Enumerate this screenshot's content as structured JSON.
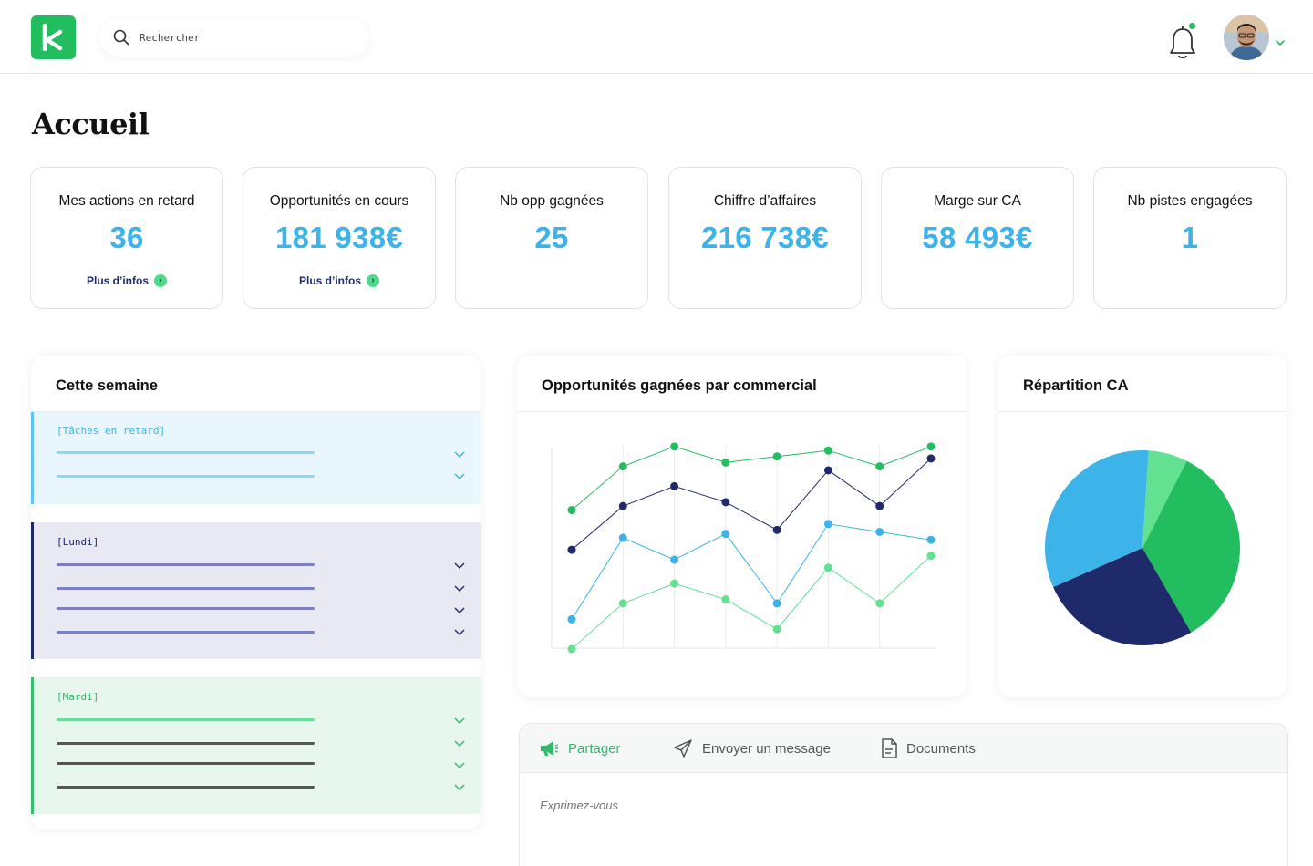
{
  "colors": {
    "brand": "#22bd5e",
    "kpi_value": "#3cb3e9",
    "navy": "#1f2a6b",
    "green": "#22bd5e",
    "light_green": "#62e290",
    "blue": "#3cb3e9"
  },
  "header": {
    "logo_letter": "k",
    "search_placeholder": "Rechercher",
    "notification_icon": "bell-icon",
    "avatar": "user-avatar"
  },
  "page": {
    "title": "Accueil"
  },
  "kpis": [
    {
      "label": "Mes actions en retard",
      "value": "36",
      "more": "Plus d’infos"
    },
    {
      "label": "Opportunités en cours",
      "value": "181 938€",
      "more": "Plus d’infos"
    },
    {
      "label": "Nb opp gagnées",
      "value": "25"
    },
    {
      "label": "Chiffre d’affaires",
      "value": "216 738€"
    },
    {
      "label": "Marge sur CA",
      "value": "58 493€"
    },
    {
      "label": "Nb pistes engagées",
      "value": "1"
    }
  ],
  "week": {
    "title": "Cette semaine",
    "sections": [
      {
        "label": "[Tâches en retard]",
        "rows": 2
      },
      {
        "label": "[Lundi]",
        "rows": 4
      },
      {
        "label": "[Mardi]",
        "rows": 4
      }
    ]
  },
  "line_chart": {
    "title": "Opportunités gagnées par commercial",
    "chart_data": {
      "type": "line",
      "x": [
        1,
        2,
        3,
        4,
        5,
        6,
        7,
        8
      ],
      "ylim": [
        0,
        100
      ],
      "grid": "vertical",
      "series": [
        {
          "color": "#22bd5e",
          "values": [
            70,
            92,
            102,
            94,
            97,
            100,
            92,
            102
          ]
        },
        {
          "color": "#1f2a6b",
          "values": [
            50,
            72,
            82,
            74,
            60,
            90,
            72,
            96
          ]
        },
        {
          "color": "#3cb3e9",
          "values": [
            15,
            56,
            45,
            58,
            23,
            63,
            59,
            55
          ]
        },
        {
          "color": "#62e290",
          "values": [
            0,
            23,
            33,
            25,
            10,
            41,
            23,
            47
          ]
        }
      ]
    }
  },
  "pie_chart": {
    "title": "Répartition CA",
    "chart_data": {
      "type": "pie",
      "slices": [
        {
          "color": "#22bd5e",
          "value": 34.2
        },
        {
          "color": "#1f2a6b",
          "value": 26.7
        },
        {
          "color": "#3cb3e9",
          "value": 32.6
        },
        {
          "color": "#62e290",
          "value": 6.5
        }
      ]
    }
  },
  "composer": {
    "tabs": [
      {
        "label": "Partager",
        "icon": "megaphone-icon"
      },
      {
        "label": "Envoyer un message",
        "icon": "send-icon"
      },
      {
        "label": "Documents",
        "icon": "document-icon"
      }
    ],
    "placeholder": "Exprimez-vous"
  }
}
